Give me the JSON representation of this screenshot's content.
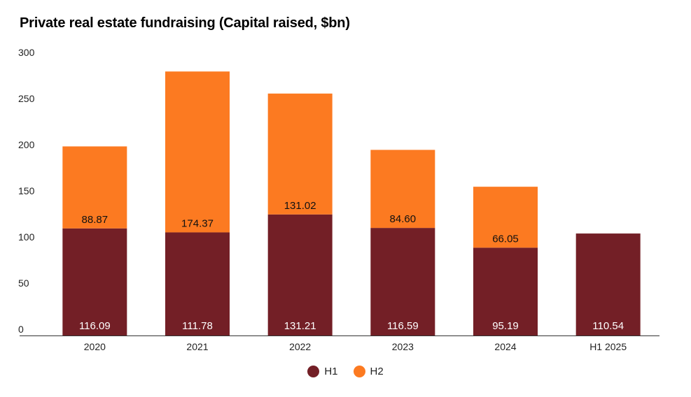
{
  "chart_data": {
    "type": "bar",
    "stacked": true,
    "title": "Private real estate fundraising (Capital raised, $bn)",
    "xlabel": "",
    "ylabel": "",
    "categories": [
      "2020",
      "2021",
      "2022",
      "2023",
      "2024",
      "H1 2025"
    ],
    "series": [
      {
        "name": "H1",
        "color": "#731f26",
        "values": [
          116.09,
          111.78,
          131.21,
          116.59,
          95.19,
          110.54
        ],
        "labels": [
          "116.09",
          "111.78",
          "131.21",
          "116.59",
          "95.19",
          "110.54"
        ]
      },
      {
        "name": "H2",
        "color": "#fc7a21",
        "values": [
          88.87,
          174.37,
          131.02,
          84.6,
          66.05,
          null
        ],
        "labels": [
          "88.87",
          "174.37",
          "131.02",
          "84.60",
          "66.05",
          ""
        ]
      }
    ],
    "ylim": [
      0,
      300
    ],
    "yticks": [
      "0",
      "50",
      "100",
      "150",
      "200",
      "250",
      "300"
    ],
    "grid": false,
    "legend": "bottom-center"
  }
}
